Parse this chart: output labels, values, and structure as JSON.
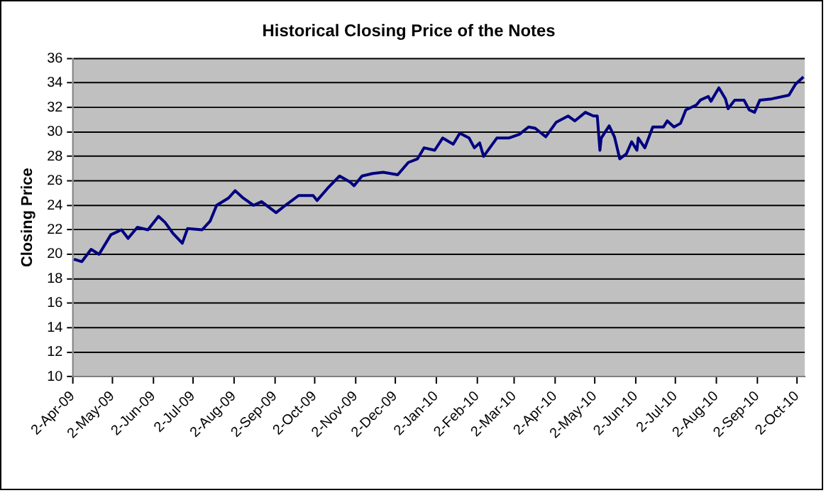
{
  "chart_data": {
    "type": "line",
    "title": "Historical Closing Price of the Notes",
    "ylabel": "Closing Price",
    "x": [
      "2009-04-03",
      "2009-04-09",
      "2009-04-16",
      "2009-04-22",
      "2009-05-01",
      "2009-05-09",
      "2009-05-14",
      "2009-05-21",
      "2009-05-29",
      "2009-06-06",
      "2009-06-11",
      "2009-06-17",
      "2009-06-24",
      "2009-06-28",
      "2009-07-09",
      "2009-07-15",
      "2009-07-20",
      "2009-07-29",
      "2009-08-03",
      "2009-08-09",
      "2009-08-17",
      "2009-08-23",
      "2009-09-03",
      "2009-09-10",
      "2009-09-20",
      "2009-10-01",
      "2009-10-04",
      "2009-10-12",
      "2009-10-21",
      "2009-10-29",
      "2009-11-01",
      "2009-11-07",
      "2009-11-15",
      "2009-11-23",
      "2009-12-04",
      "2009-12-12",
      "2009-12-19",
      "2009-12-24",
      "2010-01-01",
      "2010-01-07",
      "2010-01-15",
      "2010-01-20",
      "2010-01-27",
      "2010-01-31",
      "2010-02-04",
      "2010-02-07",
      "2010-02-17",
      "2010-02-26",
      "2010-03-06",
      "2010-03-13",
      "2010-03-18",
      "2010-03-26",
      "2010-04-03",
      "2010-04-12",
      "2010-04-17",
      "2010-04-25",
      "2010-05-01",
      "2010-05-04",
      "2010-05-06",
      "2010-05-07",
      "2010-05-13",
      "2010-05-17",
      "2010-05-21",
      "2010-05-26",
      "2010-05-30",
      "2010-06-03",
      "2010-06-04",
      "2010-06-09",
      "2010-06-15",
      "2010-06-23",
      "2010-06-26",
      "2010-07-01",
      "2010-07-06",
      "2010-07-10",
      "2010-07-18",
      "2010-07-21",
      "2010-07-27",
      "2010-07-29",
      "2010-08-04",
      "2010-08-09",
      "2010-08-11",
      "2010-08-16",
      "2010-08-23",
      "2010-08-27",
      "2010-08-31",
      "2010-09-04",
      "2010-09-13",
      "2010-09-26",
      "2010-10-01",
      "2010-10-07"
    ],
    "series": [
      {
        "color": "#000080",
        "values": [
          19.6,
          19.4,
          20.4,
          20.0,
          21.6,
          22.0,
          21.3,
          22.2,
          22.0,
          23.1,
          22.6,
          21.7,
          20.9,
          22.1,
          22.0,
          22.7,
          24.0,
          24.6,
          25.2,
          24.6,
          24.0,
          24.3,
          23.4,
          24.0,
          24.8,
          24.8,
          24.4,
          25.4,
          26.4,
          25.9,
          25.6,
          26.4,
          26.6,
          26.7,
          26.5,
          27.5,
          27.8,
          28.7,
          28.5,
          29.5,
          29.0,
          29.9,
          29.5,
          28.7,
          29.1,
          28.0,
          29.5,
          29.5,
          29.8,
          30.4,
          30.3,
          29.6,
          30.8,
          31.3,
          30.9,
          31.6,
          31.3,
          31.3,
          28.5,
          29.5,
          30.5,
          29.6,
          27.8,
          28.2,
          29.2,
          28.5,
          29.5,
          28.7,
          30.4,
          30.4,
          30.9,
          30.4,
          30.7,
          31.8,
          32.2,
          32.6,
          32.9,
          32.5,
          33.6,
          32.7,
          31.9,
          32.6,
          32.6,
          31.8,
          31.6,
          32.6,
          32.7,
          33.0,
          33.9,
          34.5
        ]
      }
    ],
    "xlim": [
      "2009-04-02",
      "2010-10-08"
    ],
    "xticks": [
      {
        "value": "2009-04-02",
        "label": "2-Apr-09"
      },
      {
        "value": "2009-05-02",
        "label": "2-May-09"
      },
      {
        "value": "2009-06-02",
        "label": "2-Jun-09"
      },
      {
        "value": "2009-07-02",
        "label": "2-Jul-09"
      },
      {
        "value": "2009-08-02",
        "label": "2-Aug-09"
      },
      {
        "value": "2009-09-02",
        "label": "2-Sep-09"
      },
      {
        "value": "2009-10-02",
        "label": "2-Oct-09"
      },
      {
        "value": "2009-11-02",
        "label": "2-Nov-09"
      },
      {
        "value": "2009-12-02",
        "label": "2-Dec-09"
      },
      {
        "value": "2010-01-02",
        "label": "2-Jan-10"
      },
      {
        "value": "2010-02-02",
        "label": "2-Feb-10"
      },
      {
        "value": "2010-03-02",
        "label": "2-Mar-10"
      },
      {
        "value": "2010-04-02",
        "label": "2-Apr-10"
      },
      {
        "value": "2010-05-02",
        "label": "2-May-10"
      },
      {
        "value": "2010-06-02",
        "label": "2-Jun-10"
      },
      {
        "value": "2010-07-02",
        "label": "2-Jul-10"
      },
      {
        "value": "2010-08-02",
        "label": "2-Aug-10"
      },
      {
        "value": "2010-09-02",
        "label": "2-Sep-10"
      },
      {
        "value": "2010-10-02",
        "label": "2-Oct-10"
      }
    ],
    "ylim": [
      10,
      36
    ],
    "yticks": [
      10,
      12,
      14,
      16,
      18,
      20,
      22,
      24,
      26,
      28,
      30,
      32,
      34,
      36
    ],
    "grid": "y"
  }
}
